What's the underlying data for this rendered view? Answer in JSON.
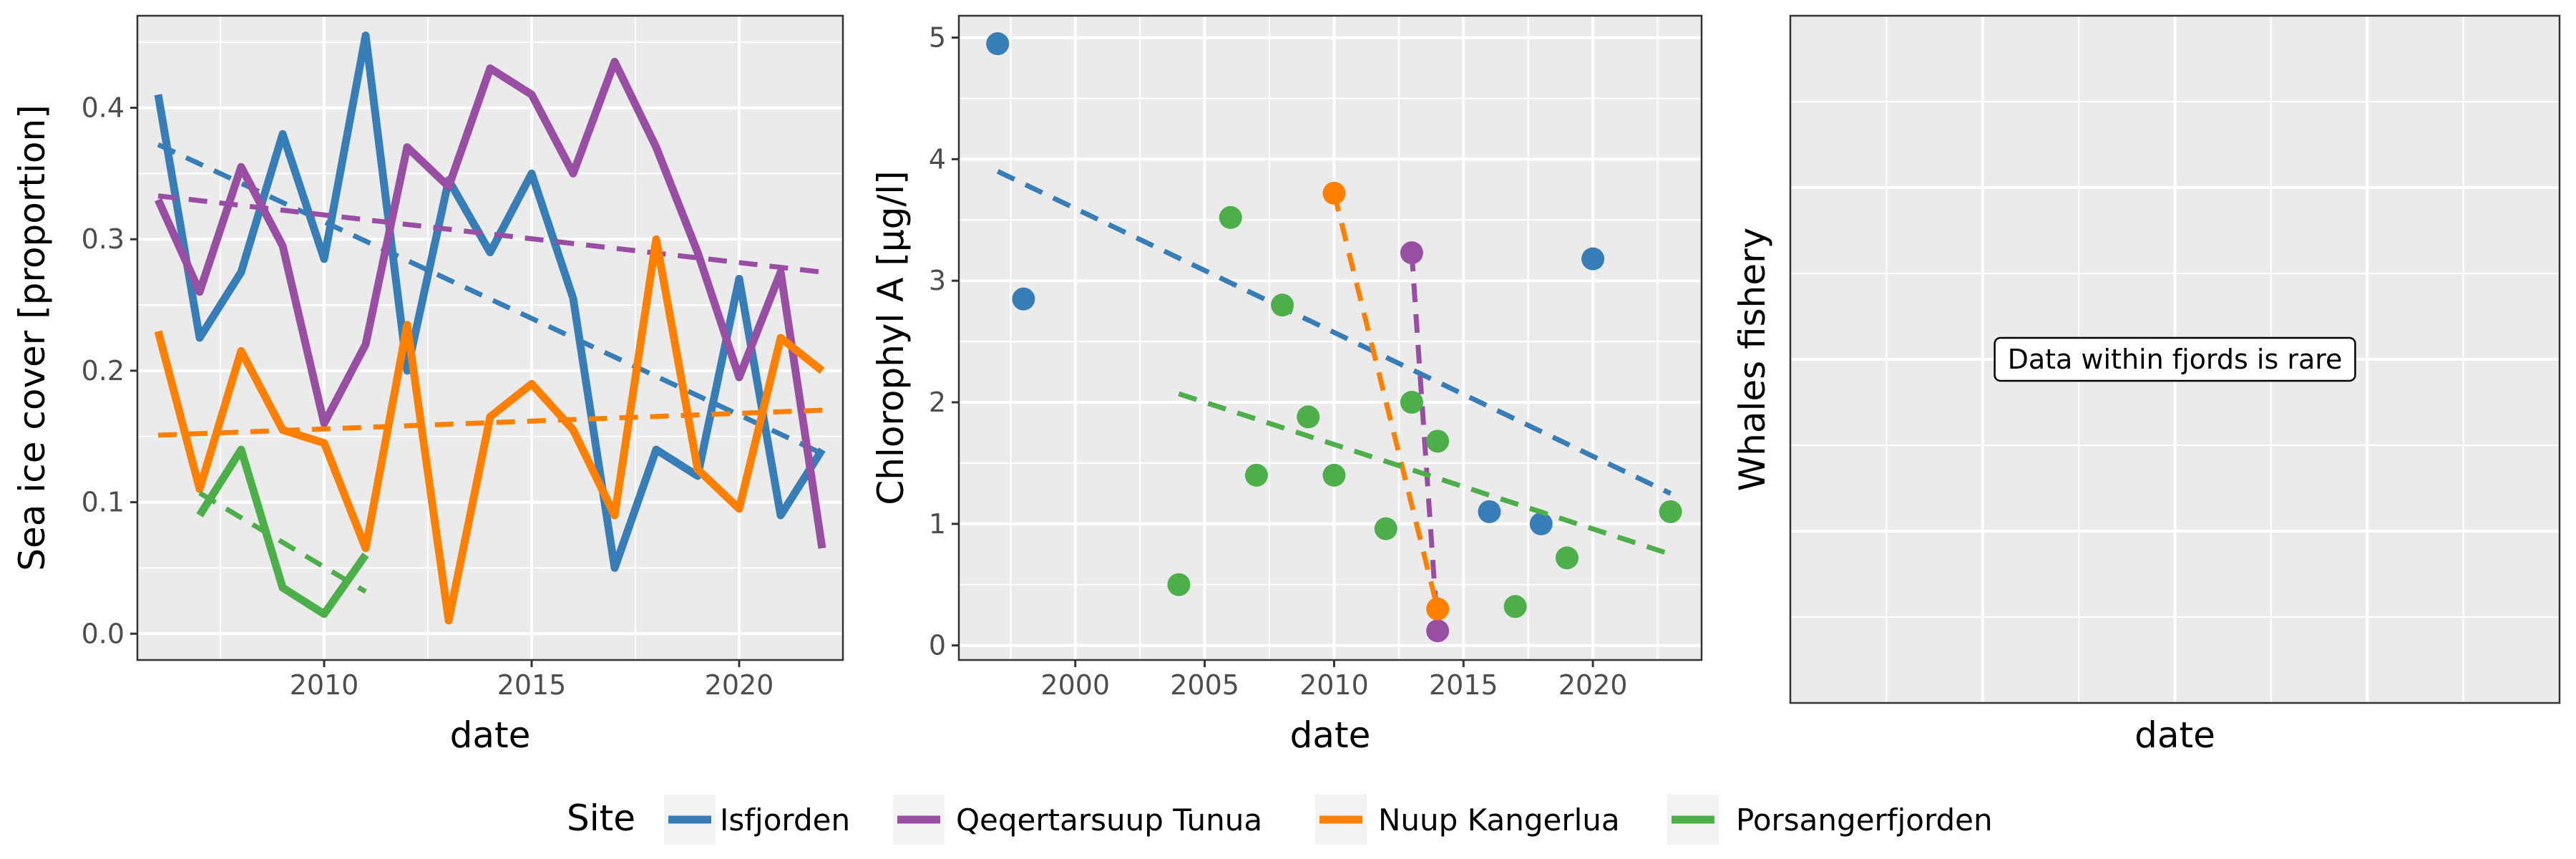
{
  "colors": {
    "Isfjorden": "#377eb8",
    "Qeqertarsuup Tunua": "#984ea3",
    "Nuup Kangerlua": "#ff7f00",
    "Porsangerfjorden": "#4daf4a",
    "panel_bg": "#ebebeb",
    "grid": "#ffffff"
  },
  "legend": {
    "title": "Site",
    "position": "bottom",
    "entries": [
      "Isfjorden",
      "Qeqertarsuup Tunua",
      "Nuup Kangerlua",
      "Porsangerfjorden"
    ]
  },
  "chart_data": [
    {
      "type": "line",
      "xlabel": "date",
      "ylabel": "Sea ice cover [proportion]",
      "xlim": [
        2005.5,
        2022.5
      ],
      "ylim": [
        -0.02,
        0.47
      ],
      "xticks": [
        2010,
        2015,
        2020
      ],
      "yticks": [
        0.0,
        0.1,
        0.2,
        0.3,
        0.4
      ],
      "ytick_labels": [
        "0.0",
        "0.1",
        "0.2",
        "0.3",
        "0.4"
      ],
      "grid": true,
      "series": [
        {
          "name": "Isfjorden",
          "x": [
            2006,
            2007,
            2008,
            2009,
            2010,
            2011,
            2012,
            2013,
            2014,
            2015,
            2016,
            2017,
            2018,
            2019,
            2020,
            2021,
            2022
          ],
          "y": [
            0.41,
            0.225,
            0.275,
            0.38,
            0.285,
            0.455,
            0.2,
            0.345,
            0.29,
            0.35,
            0.255,
            0.05,
            0.14,
            0.12,
            0.27,
            0.09,
            0.14
          ],
          "trend": [
            [
              2006,
              0.372
            ],
            [
              2022,
              0.137
            ]
          ]
        },
        {
          "name": "Qeqertarsuup Tunua",
          "x": [
            2006,
            2007,
            2008,
            2009,
            2010,
            2011,
            2012,
            2013,
            2014,
            2015,
            2016,
            2017,
            2018,
            2019,
            2020,
            2021,
            2022
          ],
          "y": [
            0.33,
            0.26,
            0.355,
            0.295,
            0.16,
            0.22,
            0.37,
            0.34,
            0.43,
            0.41,
            0.35,
            0.435,
            0.37,
            0.29,
            0.195,
            0.275,
            0.065
          ],
          "trend": [
            [
              2006,
              0.333
            ],
            [
              2022,
              0.275
            ]
          ]
        },
        {
          "name": "Nuup Kangerlua",
          "x": [
            2006,
            2007,
            2008,
            2009,
            2010,
            2011,
            2012,
            2013,
            2014,
            2015,
            2016,
            2017,
            2018,
            2019,
            2020,
            2021,
            2022
          ],
          "y": [
            0.23,
            0.11,
            0.215,
            0.155,
            0.145,
            0.065,
            0.235,
            0.01,
            0.165,
            0.19,
            0.155,
            0.09,
            0.3,
            0.125,
            0.095,
            0.225,
            0.2
          ],
          "trend": [
            [
              2006,
              0.151
            ],
            [
              2022,
              0.17
            ]
          ]
        },
        {
          "name": "Porsangerfjorden",
          "x": [
            2007,
            2008,
            2009,
            2010,
            2011
          ],
          "y": [
            0.09,
            0.14,
            0.035,
            0.015,
            0.06
          ],
          "trend": [
            [
              2007,
              0.107
            ],
            [
              2011,
              0.032
            ]
          ]
        }
      ]
    },
    {
      "type": "scatter",
      "xlabel": "date",
      "ylabel": "Chlorophyl A [µg/l]",
      "xlim": [
        1995.5,
        2024.2
      ],
      "ylim": [
        -0.12,
        5.18
      ],
      "xticks": [
        2000,
        2005,
        2010,
        2015,
        2020
      ],
      "yticks": [
        0,
        1,
        2,
        3,
        4,
        5
      ],
      "ytick_labels": [
        "0",
        "1",
        "2",
        "3",
        "4",
        "5"
      ],
      "grid": true,
      "series": [
        {
          "name": "Isfjorden",
          "x": [
            1997,
            1998,
            2016,
            2018,
            2020
          ],
          "y": [
            4.95,
            2.85,
            1.1,
            1.0,
            3.18
          ],
          "trend": [
            [
              1997,
              3.9
            ],
            [
              2023,
              1.25
            ]
          ]
        },
        {
          "name": "Qeqertarsuup Tunua",
          "x": [
            2013,
            2014
          ],
          "y": [
            3.23,
            0.12
          ],
          "trend": [
            [
              2013,
              3.23
            ],
            [
              2014,
              0.12
            ]
          ]
        },
        {
          "name": "Nuup Kangerlua",
          "x": [
            2010,
            2014
          ],
          "y": [
            3.72,
            0.3
          ],
          "trend": [
            [
              2010,
              3.72
            ],
            [
              2014,
              0.3
            ]
          ]
        },
        {
          "name": "Porsangerfjorden",
          "x": [
            2004,
            2006,
            2007,
            2008,
            2009,
            2010,
            2012,
            2013,
            2014,
            2017,
            2019,
            2023
          ],
          "y": [
            0.5,
            3.52,
            1.4,
            2.8,
            1.88,
            1.4,
            0.96,
            2.0,
            1.68,
            0.32,
            0.72,
            1.1
          ],
          "trend": [
            [
              2004,
              2.07
            ],
            [
              2023,
              0.75
            ]
          ]
        }
      ]
    },
    {
      "type": "scatter",
      "xlabel": "date",
      "ylabel": "Whales fishery",
      "grid": true,
      "series": [],
      "annotation": "Data within fjords is rare"
    }
  ]
}
